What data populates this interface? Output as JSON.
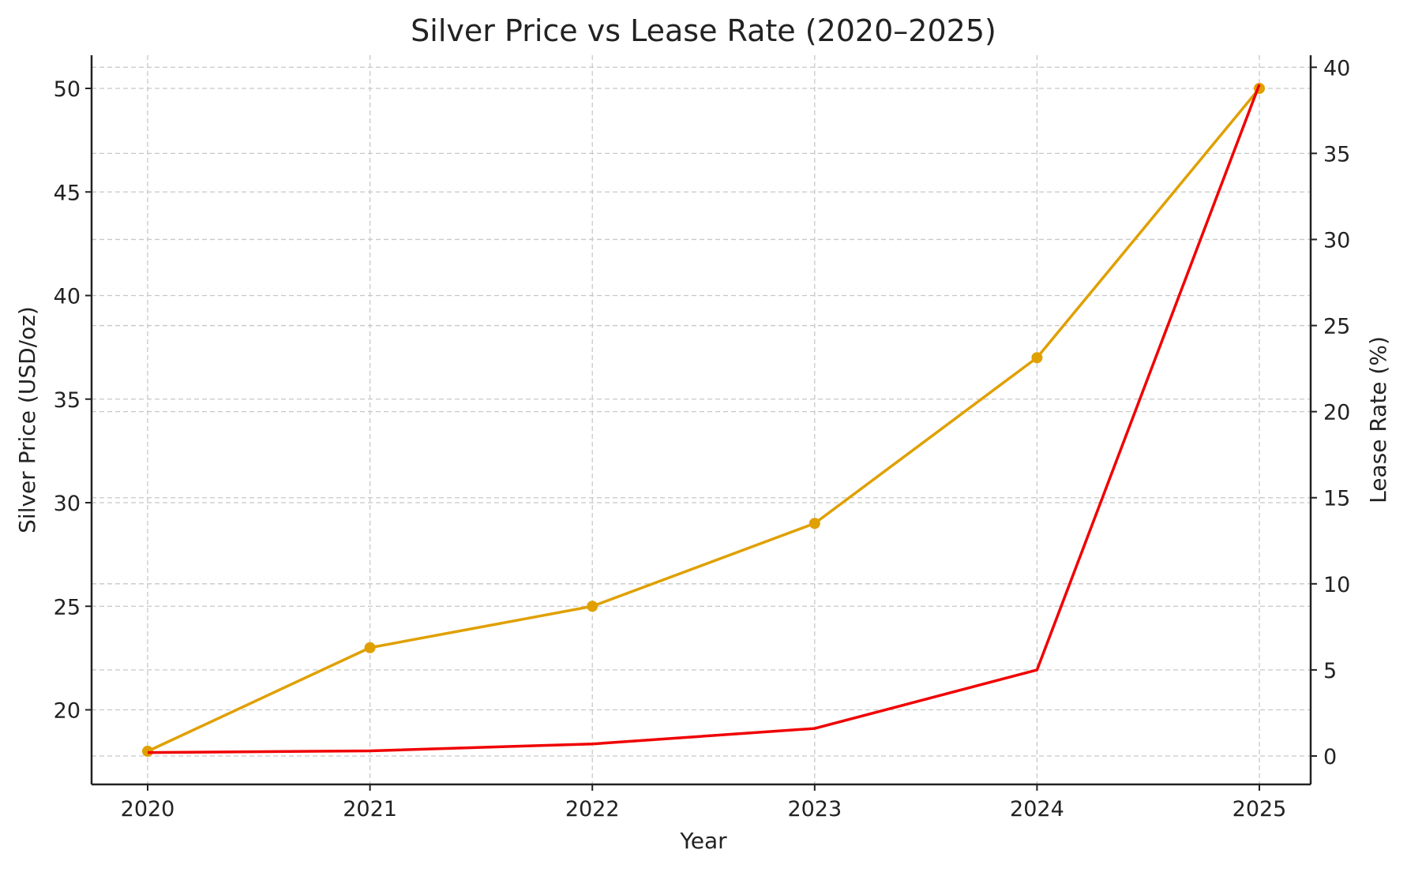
{
  "chart_data": {
    "type": "line",
    "title": "Silver Price vs Lease Rate (2020–2025)",
    "xlabel": "Year",
    "ylabel_left": "Silver Price (USD/oz)",
    "ylabel_right": "Lease Rate (%)",
    "x": [
      "2020",
      "2021",
      "2022",
      "2023",
      "2024",
      "2025"
    ],
    "ylim_left": [
      16.4,
      51.6
    ],
    "ylim_right": [
      -1.65,
      40.7
    ],
    "yticks_left": [
      20,
      25,
      30,
      35,
      40,
      45,
      50
    ],
    "yticks_right": [
      0,
      5,
      10,
      15,
      20,
      25,
      30,
      35,
      40
    ],
    "grid": true,
    "series": [
      {
        "axis": "left",
        "color": "#E0A000",
        "marker": "circle",
        "values": [
          18,
          23,
          25,
          29,
          37,
          50
        ]
      },
      {
        "axis": "right",
        "color": "#F00000",
        "marker": "none",
        "values": [
          0.2,
          0.3,
          0.7,
          1.6,
          5,
          39
        ]
      }
    ]
  }
}
